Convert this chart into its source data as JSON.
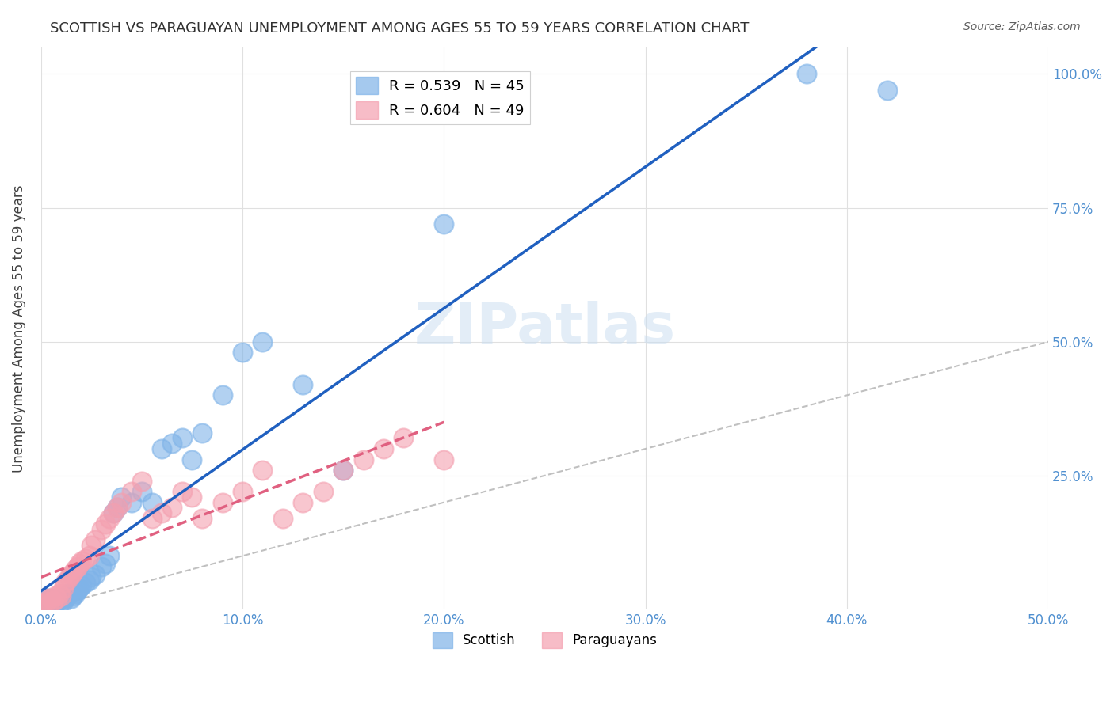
{
  "title": "SCOTTISH VS PARAGUAYAN UNEMPLOYMENT AMONG AGES 55 TO 59 YEARS CORRELATION CHART",
  "source": "Source: ZipAtlas.com",
  "xlabel": "",
  "ylabel": "Unemployment Among Ages 55 to 59 years",
  "xlim": [
    0,
    0.5
  ],
  "ylim": [
    0,
    1.05
  ],
  "xticks": [
    0.0,
    0.1,
    0.2,
    0.3,
    0.4,
    0.5
  ],
  "xticklabels": [
    "0.0%",
    "10.0%",
    "20.0%",
    "30.0%",
    "40.0%",
    "50.0%"
  ],
  "yticks": [
    0.0,
    0.25,
    0.5,
    0.75,
    1.0
  ],
  "yticklabels": [
    "",
    "25.0%",
    "50.0%",
    "75.0%",
    "100.0%"
  ],
  "legend_r_scottish": "R = 0.539",
  "legend_n_scottish": "N = 45",
  "legend_r_paraguayan": "R = 0.604",
  "legend_n_paraguayan": "N = 49",
  "scottish_color": "#7fb3e8",
  "paraguayan_color": "#f4a0b0",
  "scottish_line_color": "#2060c0",
  "paraguayan_line_color": "#e06080",
  "ref_line_color": "#c0c0c0",
  "watermark": "ZIPatlas",
  "background_color": "#ffffff",
  "grid_color": "#e0e0e0",
  "axis_color": "#5090d0",
  "scottish_x": [
    0.002,
    0.003,
    0.004,
    0.005,
    0.006,
    0.007,
    0.008,
    0.009,
    0.01,
    0.011,
    0.012,
    0.013,
    0.014,
    0.015,
    0.016,
    0.017,
    0.018,
    0.019,
    0.02,
    0.022,
    0.024,
    0.025,
    0.027,
    0.03,
    0.032,
    0.034,
    0.036,
    0.038,
    0.04,
    0.045,
    0.05,
    0.055,
    0.06,
    0.065,
    0.07,
    0.075,
    0.08,
    0.09,
    0.1,
    0.11,
    0.13,
    0.15,
    0.2,
    0.38,
    0.42
  ],
  "scottish_y": [
    0.02,
    0.01,
    0.02,
    0.01,
    0.02,
    0.01,
    0.015,
    0.01,
    0.02,
    0.015,
    0.02,
    0.025,
    0.03,
    0.02,
    0.025,
    0.03,
    0.035,
    0.04,
    0.045,
    0.05,
    0.055,
    0.06,
    0.065,
    0.08,
    0.085,
    0.1,
    0.18,
    0.19,
    0.21,
    0.2,
    0.22,
    0.2,
    0.3,
    0.31,
    0.32,
    0.28,
    0.33,
    0.4,
    0.48,
    0.5,
    0.42,
    0.26,
    0.72,
    1.0,
    0.97
  ],
  "paraguayan_x": [
    0.001,
    0.002,
    0.003,
    0.004,
    0.005,
    0.006,
    0.007,
    0.008,
    0.009,
    0.01,
    0.011,
    0.012,
    0.013,
    0.014,
    0.015,
    0.016,
    0.017,
    0.018,
    0.019,
    0.02,
    0.022,
    0.024,
    0.025,
    0.027,
    0.03,
    0.032,
    0.034,
    0.036,
    0.038,
    0.04,
    0.045,
    0.05,
    0.055,
    0.06,
    0.065,
    0.07,
    0.075,
    0.08,
    0.09,
    0.1,
    0.11,
    0.12,
    0.13,
    0.14,
    0.15,
    0.16,
    0.17,
    0.18,
    0.2
  ],
  "paraguayan_y": [
    0.01,
    0.02,
    0.015,
    0.01,
    0.02,
    0.015,
    0.025,
    0.02,
    0.03,
    0.025,
    0.04,
    0.05,
    0.055,
    0.06,
    0.065,
    0.07,
    0.075,
    0.08,
    0.085,
    0.09,
    0.095,
    0.1,
    0.12,
    0.13,
    0.15,
    0.16,
    0.17,
    0.18,
    0.19,
    0.2,
    0.22,
    0.24,
    0.17,
    0.18,
    0.19,
    0.22,
    0.21,
    0.17,
    0.2,
    0.22,
    0.26,
    0.17,
    0.2,
    0.22,
    0.26,
    0.28,
    0.3,
    0.32,
    0.28
  ]
}
